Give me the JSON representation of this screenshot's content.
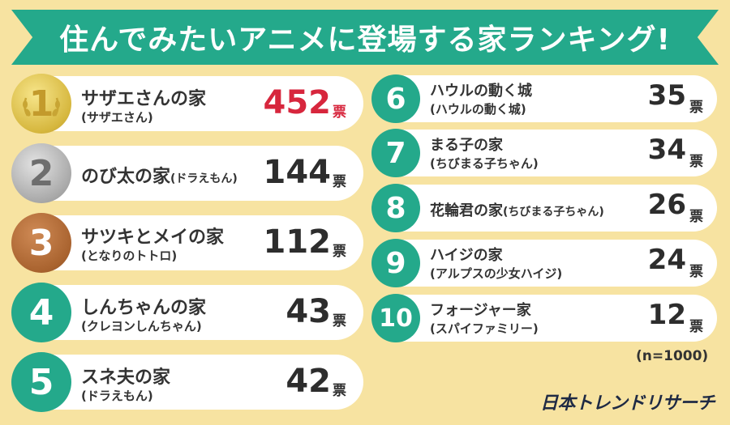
{
  "chart_data": {
    "type": "table",
    "title": "住んでみたいアニメに登場する家ランキング!",
    "unit": "票",
    "note": "(n=1000)",
    "rows": [
      {
        "rank": "1",
        "name": "サザエさんの家",
        "source": "(サザエさん)",
        "votes": 452
      },
      {
        "rank": "2",
        "name": "のび太の家",
        "source": "(ドラえもん)",
        "votes": 144
      },
      {
        "rank": "3",
        "name": "サツキとメイの家",
        "source": "(となりのトトロ)",
        "votes": 112
      },
      {
        "rank": "4",
        "name": "しんちゃんの家",
        "source": "(クレヨンしんちゃん)",
        "votes": 43
      },
      {
        "rank": "5",
        "name": "スネ夫の家",
        "source": "(ドラえもん)",
        "votes": 42
      },
      {
        "rank": "6",
        "name": "ハウルの動く城",
        "source": "(ハウルの動く城)",
        "votes": 35
      },
      {
        "rank": "7",
        "name": "まる子の家",
        "source": "(ちびまる子ちゃん)",
        "votes": 34
      },
      {
        "rank": "8",
        "name": "花輪君の家",
        "source": "(ちびまる子ちゃん)",
        "votes": 26
      },
      {
        "rank": "9",
        "name": "ハイジの家",
        "source": "(アルプスの少女ハイジ)",
        "votes": 24
      },
      {
        "rank": "10",
        "name": "フォージャー家",
        "source": "(スパイファミリー)",
        "votes": 12
      }
    ]
  },
  "brand": {
    "logo_text": "日本トレンドリサーチ",
    "accent_color": "#24a98b",
    "highlight_color": "#d7263d",
    "background_color": "#f7e3a1"
  }
}
